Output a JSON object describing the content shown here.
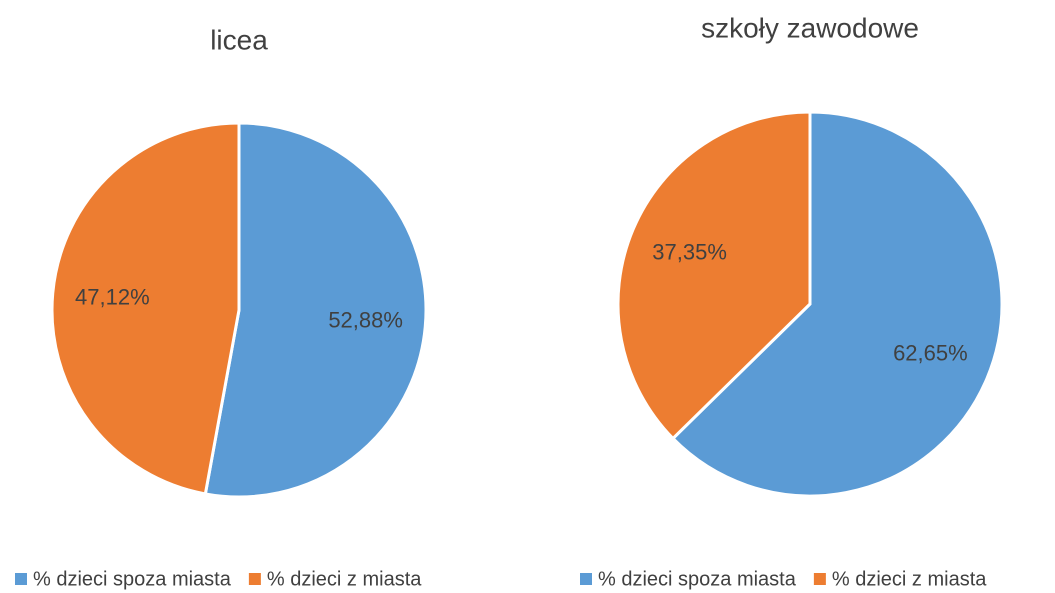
{
  "chart_data": [
    {
      "type": "pie",
      "title": "licea",
      "categories": [
        "% dzieci spoza miasta",
        "% dzieci z miasta"
      ],
      "values": [
        52.88,
        47.12
      ],
      "value_labels": [
        "52,88%",
        "47,12%"
      ],
      "colors": [
        "#5b9bd5",
        "#ed7d31"
      ],
      "legend": "bottom"
    },
    {
      "type": "pie",
      "title": "szkoły zawodowe",
      "categories": [
        "% dzieci spoza miasta",
        "% dzieci z miasta"
      ],
      "values": [
        62.65,
        37.35
      ],
      "value_labels": [
        "62,65%",
        "37,35%"
      ],
      "colors": [
        "#5b9bd5",
        "#ed7d31"
      ],
      "legend": "bottom"
    }
  ]
}
